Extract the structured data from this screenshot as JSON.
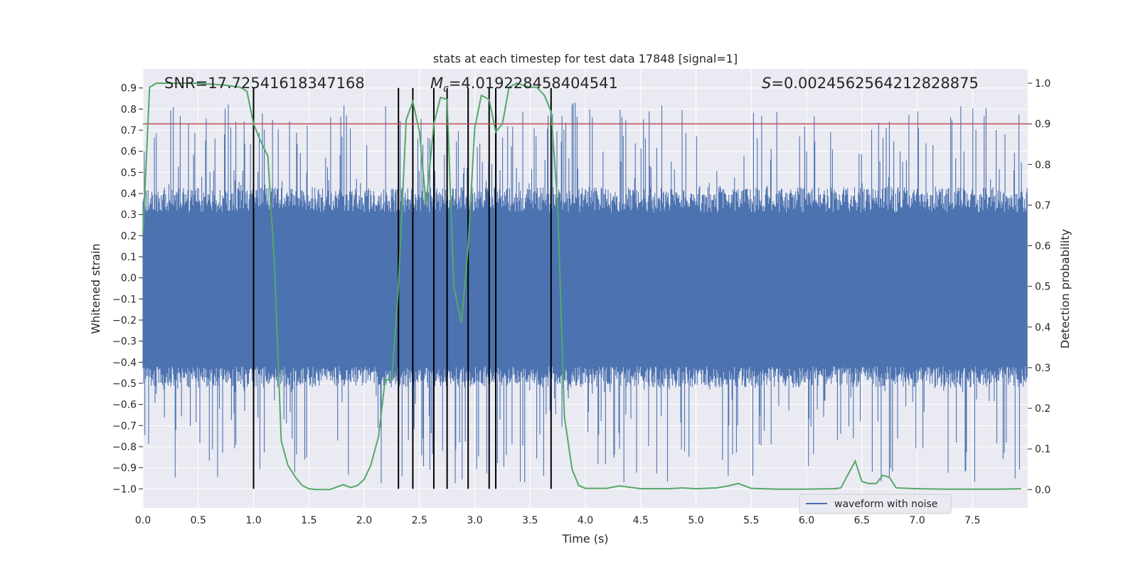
{
  "chart_data": {
    "type": "line",
    "title": "stats at each timestep for test data 17848 [signal=1]",
    "xlabel": "Time (s)",
    "ylabel_left": "Whitened strain",
    "ylabel_right": "Detection probability",
    "xlim": [
      0.0,
      8.0
    ],
    "ylim_left": [
      -1.09,
      0.99
    ],
    "ylim_right": [
      -0.045,
      1.035
    ],
    "x_ticks": [
      0.0,
      0.5,
      1.0,
      1.5,
      2.0,
      2.5,
      3.0,
      3.5,
      4.0,
      4.5,
      5.0,
      5.5,
      6.0,
      6.5,
      7.0,
      7.5
    ],
    "x_tick_labels": [
      "0.0",
      "0.5",
      "1.0",
      "1.5",
      "2.0",
      "2.5",
      "3.0",
      "3.5",
      "4.0",
      "4.5",
      "5.0",
      "5.5",
      "6.0",
      "6.5",
      "7.0",
      "7.5"
    ],
    "y_left_ticks": [
      0.9,
      0.8,
      0.7,
      0.6,
      0.5,
      0.4,
      0.3,
      0.2,
      0.1,
      0.0,
      -0.1,
      -0.2,
      -0.3,
      -0.4,
      -0.5,
      -0.6,
      -0.7,
      -0.8,
      -0.9,
      -1.0
    ],
    "y_left_tick_labels": [
      "0.9",
      "0.8",
      "0.7",
      "0.6",
      "0.5",
      "0.4",
      "0.3",
      "0.2",
      "0.1",
      "0.0",
      "−0.1",
      "−0.2",
      "−0.3",
      "−0.4",
      "−0.5",
      "−0.6",
      "−0.7",
      "−0.8",
      "−0.9",
      "−1.0"
    ],
    "y_right_ticks": [
      1.0,
      0.9,
      0.8,
      0.7,
      0.6,
      0.5,
      0.4,
      0.3,
      0.2,
      0.1,
      0.0
    ],
    "y_right_tick_labels": [
      "1.0",
      "0.9",
      "0.8",
      "0.7",
      "0.6",
      "0.5",
      "0.4",
      "0.3",
      "0.2",
      "0.1",
      "0.0"
    ],
    "annotations": {
      "snr": "SNR=17.72541618347168",
      "mc_symbol": "M",
      "mc_sub": "c",
      "mc_value": "=4.019228458404541",
      "s_symbol": "S",
      "s_value": "=0.0024562564212828875"
    },
    "threshold": {
      "value": 0.9,
      "axis": "right",
      "color": "#c44e52"
    },
    "detection_markers_x": [
      1.0,
      2.31,
      2.44,
      2.63,
      2.75,
      2.94,
      3.13,
      3.19,
      3.69
    ],
    "detection_marker_range": [
      -1.0,
      0.9
    ],
    "series": [
      {
        "name": "waveform with noise",
        "axis": "left",
        "color": "#4c72b0",
        "style": "dense-noise",
        "core_band": [
          -0.42,
          0.31
        ],
        "spike_max": [
          0.83,
          -0.98
        ]
      },
      {
        "name": "Detection probability",
        "axis": "right",
        "color": "#55a868",
        "x": [
          0.0,
          0.06,
          0.12,
          0.25,
          0.5,
          0.75,
          0.88,
          0.94,
          1.0,
          1.06,
          1.13,
          1.19,
          1.25,
          1.31,
          1.38,
          1.44,
          1.5,
          1.56,
          1.69,
          1.81,
          1.88,
          1.94,
          2.0,
          2.06,
          2.13,
          2.19,
          2.25,
          2.31,
          2.38,
          2.44,
          2.5,
          2.56,
          2.63,
          2.69,
          2.75,
          2.81,
          2.88,
          2.94,
          3.0,
          3.06,
          3.13,
          3.19,
          3.25,
          3.31,
          3.38,
          3.44,
          3.5,
          3.56,
          3.63,
          3.69,
          3.75,
          3.81,
          3.88,
          3.94,
          4.0,
          4.19,
          4.31,
          4.5,
          4.75,
          4.88,
          5.0,
          5.19,
          5.31,
          5.38,
          5.5,
          5.75,
          6.0,
          6.25,
          6.31,
          6.44,
          6.5,
          6.56,
          6.63,
          6.69,
          6.75,
          6.81,
          7.0,
          7.25,
          7.5,
          7.75,
          7.94
        ],
        "values": [
          0.63,
          0.99,
          1.0,
          1.0,
          1.0,
          0.995,
          0.99,
          0.98,
          0.9,
          0.86,
          0.82,
          0.55,
          0.12,
          0.06,
          0.03,
          0.01,
          0.002,
          0.0,
          0.0,
          0.012,
          0.005,
          0.01,
          0.025,
          0.06,
          0.13,
          0.27,
          0.27,
          0.5,
          0.91,
          0.955,
          0.88,
          0.7,
          0.9,
          0.965,
          0.96,
          0.5,
          0.41,
          0.6,
          0.89,
          0.97,
          0.96,
          0.88,
          0.9,
          0.99,
          1.0,
          0.995,
          0.99,
          0.99,
          0.97,
          0.93,
          0.7,
          0.18,
          0.05,
          0.01,
          0.003,
          0.003,
          0.009,
          0.002,
          0.002,
          0.004,
          0.002,
          0.004,
          0.01,
          0.015,
          0.003,
          0.001,
          0.001,
          0.002,
          0.004,
          0.07,
          0.02,
          0.015,
          0.015,
          0.035,
          0.03,
          0.004,
          0.002,
          0.001,
          0.001,
          0.001,
          0.002
        ]
      }
    ],
    "legend": {
      "label": "waveform with noise",
      "position": "lower-center-right"
    }
  }
}
